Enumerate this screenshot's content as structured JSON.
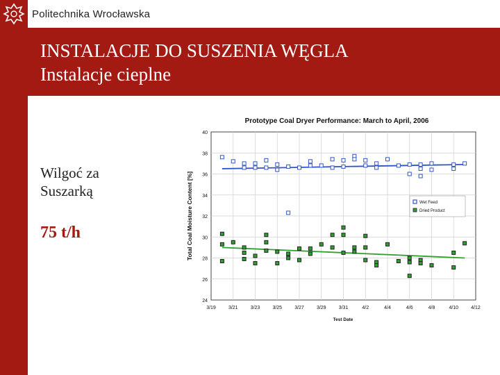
{
  "header": {
    "institution": "Politechnika Wrocławska",
    "title_line1": "INSTALACJE DO SUSZENIA WĘGLA",
    "title_line2": "Instalacje cieplne"
  },
  "side": {
    "label_line1": "Wilgoć za",
    "label_line2": "Suszarką",
    "capacity": "75 t/h"
  },
  "colors": {
    "brand": "#a31a12",
    "wet": "#2f54c8",
    "dried": "#2ea02e"
  },
  "chart_data": {
    "type": "scatter",
    "title": "Prototype Coal Dryer Performance: March to April, 2006",
    "xlabel": "Test Date",
    "ylabel": "Total Coal Moisture Content [%]",
    "x_ticks": [
      "3/19",
      "3/21",
      "3/23",
      "3/25",
      "3/27",
      "3/29",
      "3/31",
      "4/2",
      "4/4",
      "4/6",
      "4/8",
      "4/10",
      "4/12"
    ],
    "xlim": [
      "3/19",
      "4/12"
    ],
    "ylim": [
      24,
      40
    ],
    "y_ticks": [
      24,
      26,
      28,
      30,
      32,
      34,
      36,
      38,
      40
    ],
    "legend_position": "right",
    "series": [
      {
        "name": "Wet Feed",
        "points": [
          [
            "3/20",
            37.6
          ],
          [
            "3/21",
            37.2
          ],
          [
            "3/22",
            37.0
          ],
          [
            "3/22",
            36.6
          ],
          [
            "3/23",
            37.0
          ],
          [
            "3/23",
            36.6
          ],
          [
            "3/24",
            37.3
          ],
          [
            "3/24",
            36.6
          ],
          [
            "3/25",
            36.9
          ],
          [
            "3/25",
            36.4
          ],
          [
            "3/26",
            36.7
          ],
          [
            "3/26",
            32.3
          ],
          [
            "3/27",
            36.6
          ],
          [
            "3/28",
            37.2
          ],
          [
            "3/28",
            36.8
          ],
          [
            "3/29",
            36.8
          ],
          [
            "3/30",
            37.4
          ],
          [
            "3/30",
            36.6
          ],
          [
            "3/31",
            37.3
          ],
          [
            "3/31",
            36.7
          ],
          [
            "4/1",
            37.7
          ],
          [
            "4/1",
            37.4
          ],
          [
            "4/2",
            37.3
          ],
          [
            "4/2",
            36.8
          ],
          [
            "4/3",
            37.0
          ],
          [
            "4/3",
            36.6
          ],
          [
            "4/4",
            37.4
          ],
          [
            "4/5",
            36.8
          ],
          [
            "4/6",
            36.9
          ],
          [
            "4/6",
            36.0
          ],
          [
            "4/7",
            36.9
          ],
          [
            "4/7",
            36.5
          ],
          [
            "4/7",
            35.8
          ],
          [
            "4/8",
            37.0
          ],
          [
            "4/8",
            36.4
          ],
          [
            "4/10",
            36.9
          ],
          [
            "4/10",
            36.5
          ],
          [
            "4/11",
            37.0
          ]
        ],
        "trend": [
          [
            "3/20",
            36.5
          ],
          [
            "4/11",
            36.9
          ]
        ]
      },
      {
        "name": "Dried Product",
        "points": [
          [
            "3/20",
            30.3
          ],
          [
            "3/20",
            29.3
          ],
          [
            "3/20",
            27.7
          ],
          [
            "3/21",
            29.5
          ],
          [
            "3/22",
            29.0
          ],
          [
            "3/22",
            28.5
          ],
          [
            "3/22",
            27.9
          ],
          [
            "3/23",
            28.2
          ],
          [
            "3/23",
            27.5
          ],
          [
            "3/24",
            30.2
          ],
          [
            "3/24",
            29.5
          ],
          [
            "3/24",
            28.7
          ],
          [
            "3/25",
            28.6
          ],
          [
            "3/25",
            27.5
          ],
          [
            "3/26",
            28.4
          ],
          [
            "3/26",
            28.0
          ],
          [
            "3/27",
            28.9
          ],
          [
            "3/27",
            27.8
          ],
          [
            "3/28",
            28.9
          ],
          [
            "3/28",
            28.4
          ],
          [
            "3/29",
            29.3
          ],
          [
            "3/30",
            30.2
          ],
          [
            "3/30",
            29.0
          ],
          [
            "3/31",
            30.9
          ],
          [
            "3/31",
            30.2
          ],
          [
            "3/31",
            28.5
          ],
          [
            "4/1",
            29.0
          ],
          [
            "4/1",
            28.6
          ],
          [
            "4/2",
            30.1
          ],
          [
            "4/2",
            29.0
          ],
          [
            "4/2",
            27.8
          ],
          [
            "4/3",
            27.6
          ],
          [
            "4/3",
            27.3
          ],
          [
            "4/4",
            29.3
          ],
          [
            "4/5",
            27.7
          ],
          [
            "4/6",
            28.0
          ],
          [
            "4/6",
            26.3
          ],
          [
            "4/6",
            27.6
          ],
          [
            "4/7",
            27.8
          ],
          [
            "4/7",
            27.5
          ],
          [
            "4/8",
            27.3
          ],
          [
            "4/10",
            28.5
          ],
          [
            "4/10",
            27.1
          ],
          [
            "4/11",
            29.4
          ]
        ],
        "trend": [
          [
            "3/20",
            29.0
          ],
          [
            "4/11",
            28.0
          ]
        ]
      }
    ]
  }
}
